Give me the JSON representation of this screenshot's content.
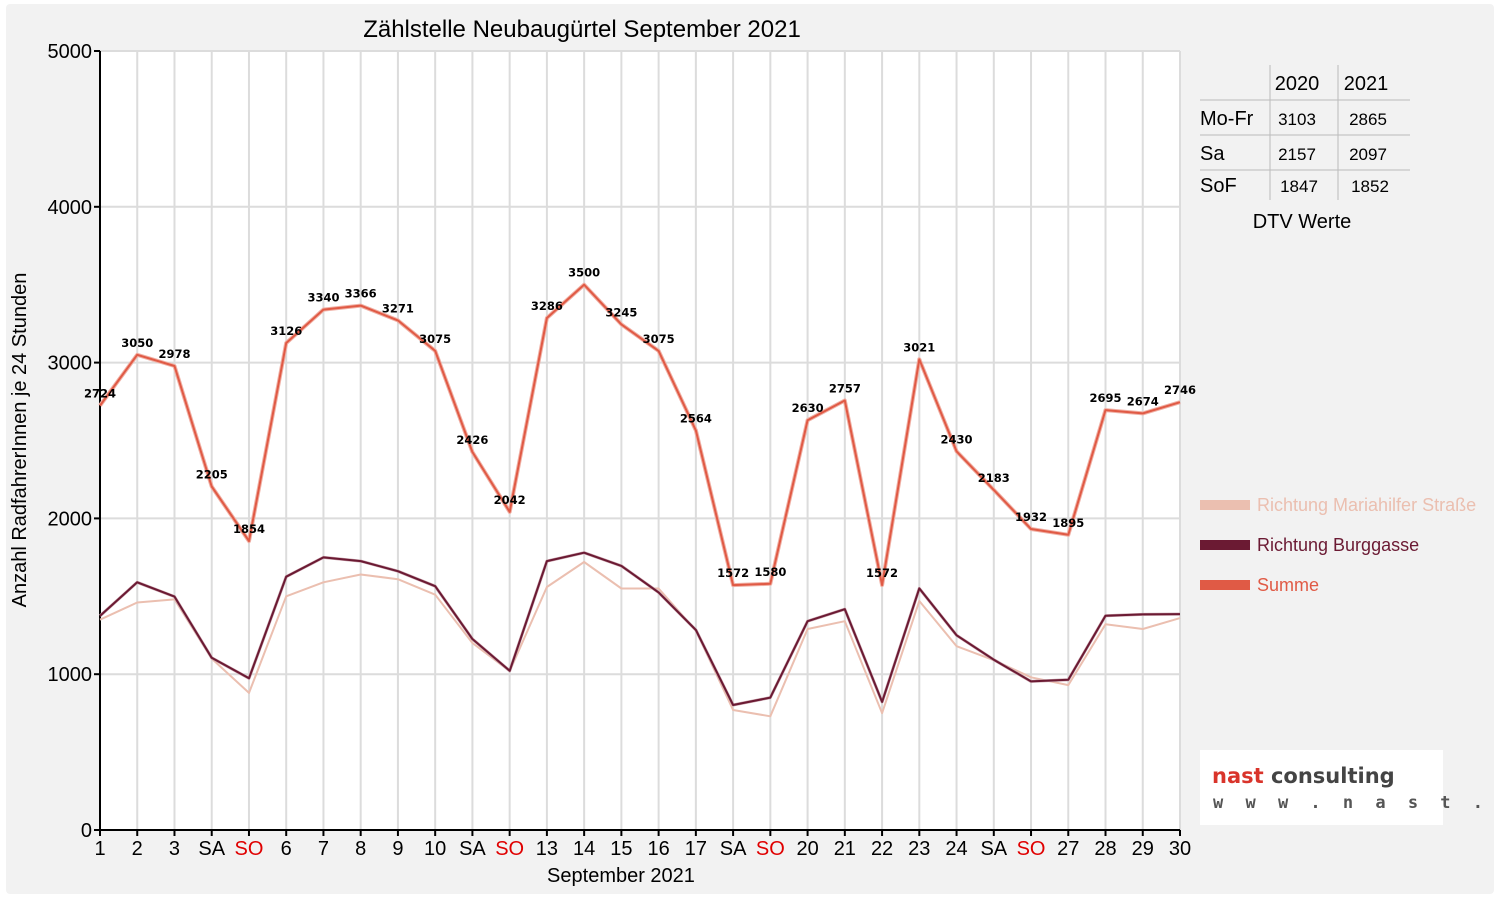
{
  "chart_data": {
    "type": "line",
    "title": "Zählstelle Neubaugürtel September 2021",
    "xlabel": "September 2021",
    "ylabel": "Anzahl RadfahrerInnen je 24 Stunden",
    "ylim": [
      0,
      5000
    ],
    "yticks": [
      "0",
      "1000",
      "2000",
      "3000",
      "4000",
      "5000"
    ],
    "categories": [
      "1",
      "2",
      "3",
      "SA",
      "SO",
      "6",
      "7",
      "8",
      "9",
      "10",
      "SA",
      "SO",
      "13",
      "14",
      "15",
      "16",
      "17",
      "SA",
      "SO",
      "20",
      "21",
      "22",
      "23",
      "24",
      "SA",
      "SO",
      "27",
      "28",
      "29",
      "30"
    ],
    "red_categories": [
      "SO"
    ],
    "grid": true,
    "legend_position": "right",
    "series": [
      {
        "name": "Richtung Mariahilfer Straße",
        "color": "#ebbfb0",
        "values": [
          1350,
          1460,
          1480,
          1100,
          880,
          1500,
          1590,
          1640,
          1610,
          1510,
          1200,
          1020,
          1560,
          1720,
          1550,
          1550,
          1280,
          770,
          730,
          1290,
          1340,
          750,
          1470,
          1180,
          1090,
          980,
          930,
          1320,
          1290,
          1360
        ]
      },
      {
        "name": "Richtung Burggasse",
        "color": "#6b1a33",
        "values": [
          1374,
          1590,
          1498,
          1105,
          974,
          1626,
          1750,
          1726,
          1661,
          1565,
          1226,
          1022,
          1726,
          1780,
          1695,
          1525,
          1284,
          802,
          850,
          1340,
          1417,
          822,
          1551,
          1250,
          1093,
          954,
          965,
          1375,
          1384,
          1386
        ]
      },
      {
        "name": "Summe",
        "color": "#e05a45",
        "values": [
          2724,
          3050,
          2978,
          2205,
          1854,
          3126,
          3340,
          3366,
          3271,
          3075,
          2426,
          2042,
          3286,
          3500,
          3245,
          3075,
          2564,
          1572,
          1580,
          2630,
          2757,
          1572,
          3021,
          2430,
          2183,
          1932,
          1895,
          2695,
          2674,
          2746
        ]
      }
    ],
    "data_labels": [
      "2724",
      "3050",
      "2978",
      "2205",
      "1854",
      "3126",
      "3340",
      "3366",
      "3271",
      "3075",
      "2426",
      "2042",
      "3286",
      "3500",
      "3245",
      "3075",
      "2564",
      "1572",
      "1580",
      "2630",
      "2757",
      "1572",
      "3021",
      "2430",
      "2183",
      "1932",
      "1895",
      "2695",
      "2674",
      "2746"
    ]
  },
  "dtv_table": {
    "headers": [
      "",
      "2020",
      "2021"
    ],
    "rows": [
      {
        "label": "Mo-Fr",
        "v2020": "3103",
        "v2021": "2865"
      },
      {
        "label": "Sa",
        "v2020": "2157",
        "v2021": "2097"
      },
      {
        "label": "SoF",
        "v2020": "1847",
        "v2021": "1852"
      }
    ],
    "caption": "DTV Werte"
  },
  "logo": {
    "brand_part1": "nast",
    "brand_part2": " consulting",
    "url": "w w w . n a s t . a t",
    "brand_color_1": "#d9342b",
    "brand_color_2": "#444444"
  }
}
